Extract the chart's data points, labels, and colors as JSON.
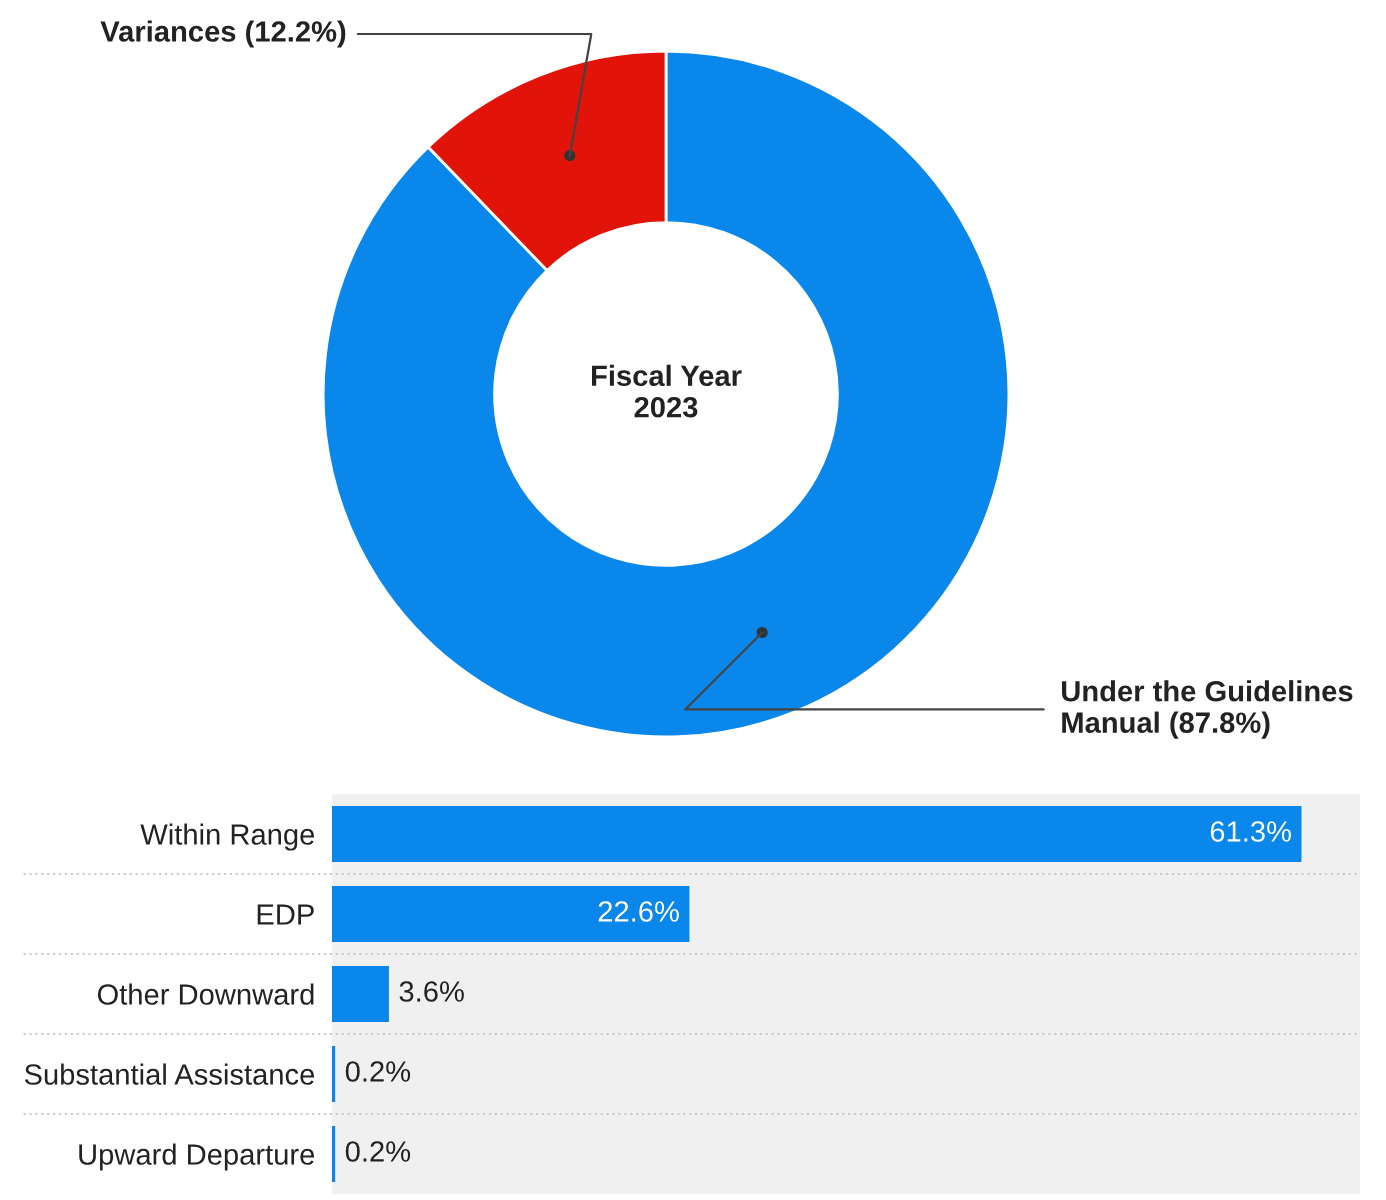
{
  "chart_data": [
    {
      "type": "donut",
      "categories": [
        "Under the Guidelines\nManual (87.8%)",
        "Variances (12.2%)"
      ],
      "values": [
        87.8,
        12.2
      ],
      "colors": [
        "#0a87ea",
        "#e2140a"
      ],
      "annotations": [
        "Fiscal Year\n2023"
      ]
    },
    {
      "type": "bar",
      "orientation": "horizontal",
      "categories": [
        "Within Range",
        "EDP",
        "Other Downward",
        "Substantial Assistance",
        "Upward Departure"
      ],
      "values": [
        61.3,
        22.6,
        3.6,
        0.2,
        0.2
      ],
      "value_labels": [
        "61.3%",
        "22.6%",
        "3.6%",
        "0.2%",
        "0.2%"
      ],
      "color": "#0a87ea",
      "xlim": [
        0,
        65
      ],
      "tick_labels": "y"
    }
  ]
}
